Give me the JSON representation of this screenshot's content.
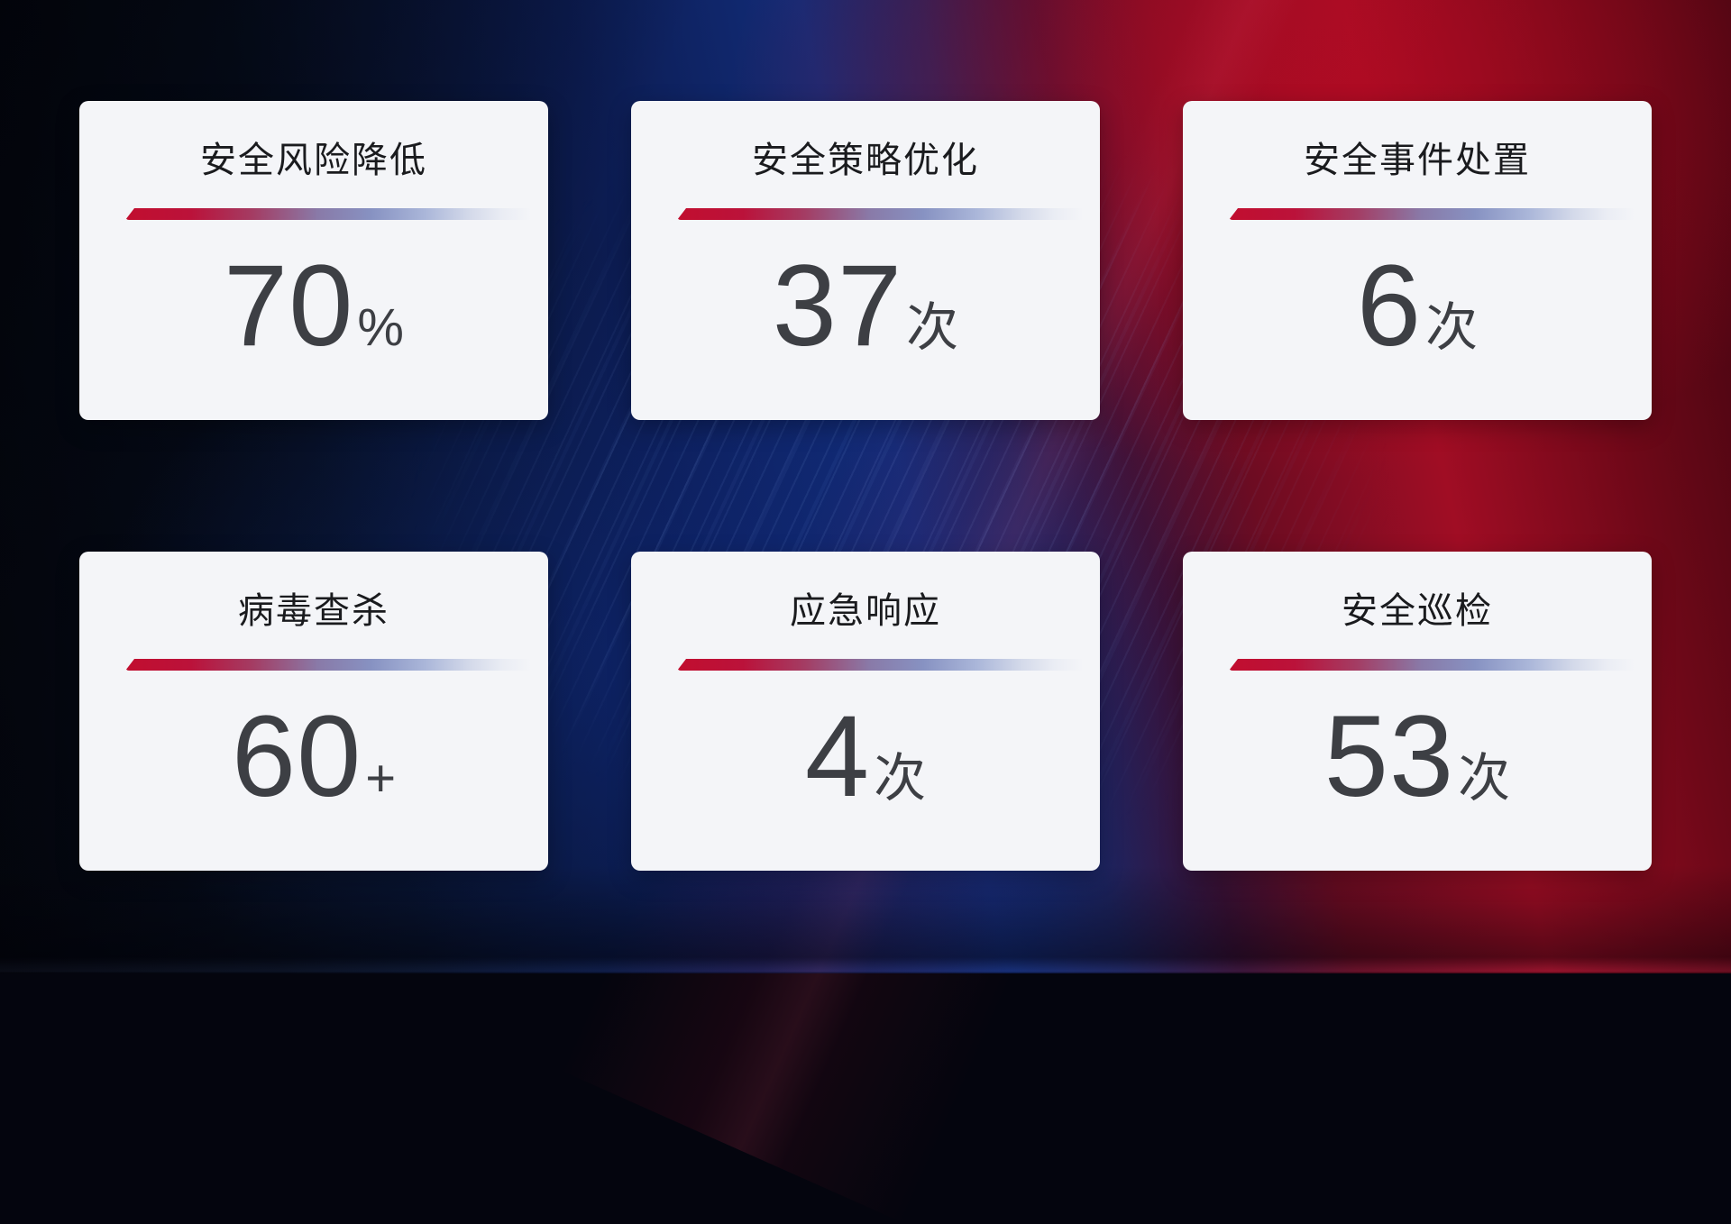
{
  "dashboard": {
    "cards": [
      {
        "title": "安全风险降低",
        "value": "70",
        "suffix": "%"
      },
      {
        "title": "安全策略优化",
        "value": "37",
        "suffix": "次"
      },
      {
        "title": "安全事件处置",
        "value": "6",
        "suffix": "次"
      },
      {
        "title": "病毒查杀",
        "value": "60",
        "suffix": "+"
      },
      {
        "title": "应急响应",
        "value": "4",
        "suffix": "次"
      },
      {
        "title": "安全巡检",
        "value": "53",
        "suffix": "次"
      }
    ],
    "colors": {
      "card_background": "#f4f5f8",
      "title_text": "#1a1b1e",
      "value_text": "#3d3f44",
      "line_gradient_start": "#c10e2f",
      "line_gradient_mid": "#8792c2",
      "line_gradient_end": "#d2d8e9",
      "background_navy": "#071023",
      "background_blue": "#122c78",
      "background_red": "#a00d24"
    }
  }
}
